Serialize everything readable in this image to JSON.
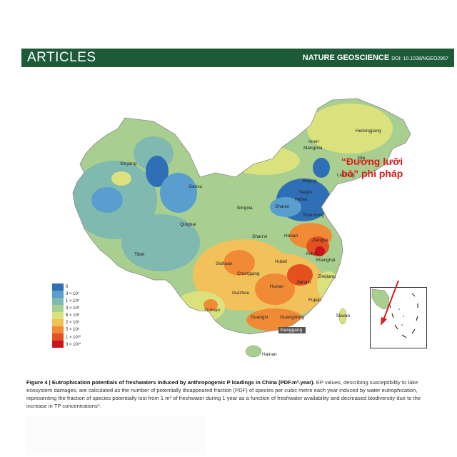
{
  "header": {
    "section": "ARTICLES",
    "journal": "NATURE GEOSCIENCE",
    "doi": "DOI: 10.1038/NGEO2967"
  },
  "map": {
    "labels": {
      "heilongjiang": "Heilongjiang",
      "inner_mongolia_1": "Inner",
      "inner_mongolia_2": "Mangolia",
      "jilin": "Jilin",
      "liaoning": "Liaoning",
      "xinjiang": "Xinjiang",
      "gansu": "Gansu",
      "beijing": "Beijing",
      "tianjin": "Tianjin",
      "hebei": "Hebei",
      "ningxia": "Ningxia",
      "shanxi": "Shanxi",
      "shandong": "Shandong",
      "qinghai": "Qinghai",
      "shaanxi": "Shan'xi",
      "henan": "Henan",
      "jiangsu": "Jiangsu",
      "anhui": "Anhui",
      "shanghai": "Shanghai",
      "tibet": "Tibet",
      "sichuan": "Sichuan",
      "chongqing": "Chongqing",
      "hubei": "Hubei",
      "zhejiang": "Zhejiang",
      "hunan": "Hunan",
      "jiangxi": "Jiangxi",
      "guizhou": "Guizhou",
      "fujian": "Fujian",
      "yunnan": "Yunnan",
      "guangxi": "Guangxi",
      "guangdong": "Guangdong",
      "taiwan": "Taiwan",
      "xianggang": "Xianggang",
      "hainan": "Hainan"
    },
    "colors": {
      "c1": "#2f6fb5",
      "c2": "#5a9dcf",
      "c3": "#7fb9b0",
      "c4": "#a8cf8f",
      "c5": "#dbe27d",
      "c6": "#f3c15a",
      "c7": "#f08a34",
      "c8": "#e4501f",
      "c9": "#c8151b"
    }
  },
  "legend": {
    "items": [
      {
        "label": "0",
        "color": "#2f6fb5"
      },
      {
        "label": "3 × 10⁷",
        "color": "#5a9dcf"
      },
      {
        "label": "1 × 10⁸",
        "color": "#7fb9b0"
      },
      {
        "label": "3 × 10⁸",
        "color": "#a8cf8f"
      },
      {
        "label": "8 × 10⁸",
        "color": "#dbe27d"
      },
      {
        "label": "2 × 10⁹",
        "color": "#f3c15a"
      },
      {
        "label": "5 × 10⁹",
        "color": "#f08a34"
      },
      {
        "label": "1 × 10¹⁰",
        "color": "#e4501f"
      },
      {
        "label": "3 × 10¹⁰",
        "color": "#c8151b"
      }
    ]
  },
  "annotation": {
    "line1": "“Đường lưỡi",
    "line2": "bò” phi pháp"
  },
  "caption": {
    "title": "Figure 4 | Eutrophication potentials of freshwaters induced by anthropogenic P loadings in China (PDF.m³.year).",
    "body": " EP values, describing susceptibility to lake ecosystem damages, are calculated as the number of potentially disappeared fraction (PDF) of species per cubic metre each year induced by water eutrophication, representing the fraction of species potentially lost from 1 m³ of freshwater during 1 year as a function of freshwater availability and decreased biodiversity due to the increase in TP concentrations⁶."
  }
}
